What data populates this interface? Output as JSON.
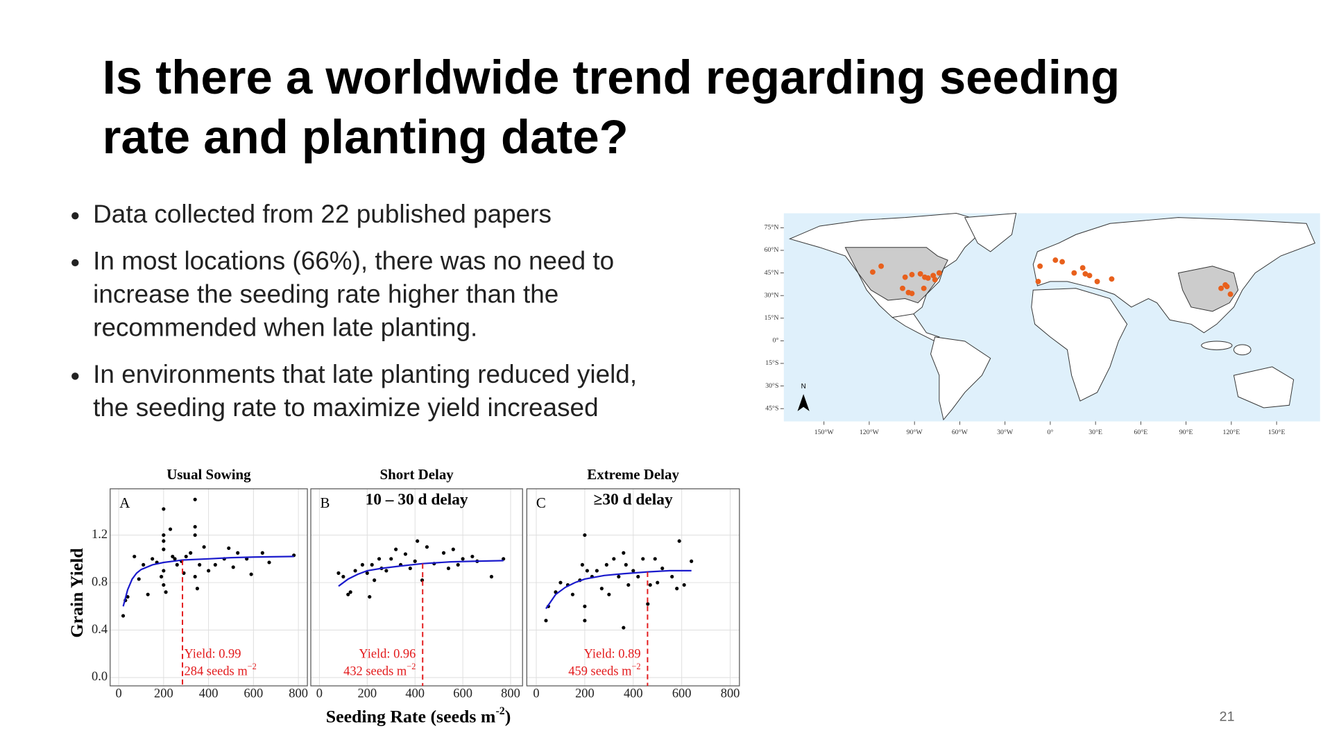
{
  "slide": {
    "title": [
      "Is there a worldwide trend regarding seeding",
      "rate and planting date?"
    ],
    "bullets": [
      [
        "Data collected from 22 published papers"
      ],
      [
        "In most locations (66%), there was no need to",
        "increase the seeding rate higher than the",
        "recommended when late planting."
      ],
      [
        "In environments that late planting reduced yield,",
        "the seeding rate to maximize yield increased"
      ]
    ],
    "page_number": "21"
  },
  "chart_data": [
    {
      "type": "map",
      "north_label": "N",
      "background": "#dff0fb",
      "land_color": "#ffffff",
      "highlight_color": "#cccccc",
      "xlim": [
        -176.6,
        178.8
      ],
      "ylim": [
        -53.5,
        84.6
      ],
      "xticks": [
        {
          "value": -150,
          "label": "150°W"
        },
        {
          "value": -120,
          "label": "120°W"
        },
        {
          "value": -90,
          "label": "90°W"
        },
        {
          "value": -60,
          "label": "60°W"
        },
        {
          "value": -30,
          "label": "30°W"
        },
        {
          "value": 0,
          "label": "0°"
        },
        {
          "value": 30,
          "label": "30°E"
        },
        {
          "value": 60,
          "label": "60°E"
        },
        {
          "value": 90,
          "label": "90°E"
        },
        {
          "value": 120,
          "label": "120°E"
        },
        {
          "value": 150,
          "label": "150°E"
        }
      ],
      "yticks": [
        {
          "value": 75,
          "label": "75°N"
        },
        {
          "value": 60,
          "label": "60°N"
        },
        {
          "value": 45,
          "label": "45°N"
        },
        {
          "value": 30,
          "label": "30°N"
        },
        {
          "value": 15,
          "label": "15°N"
        },
        {
          "value": 0,
          "label": "0°"
        },
        {
          "value": -15,
          "label": "15°S"
        },
        {
          "value": -30,
          "label": "30°S"
        },
        {
          "value": -45,
          "label": "45°S"
        }
      ],
      "series": [
        {
          "color": "#e8601c",
          "x": [
            -117.7,
            -112.1,
            -96.2,
            -91.7,
            -86.1,
            -83.2,
            -81.0,
            -77.6,
            -73.6,
            -83.8,
            -97.9,
            -94.0,
            -91.7,
            -76.4,
            -6.8,
            -8.0,
            3.4,
            7.9,
            15.8,
            21.5,
            23.2,
            26.0,
            31.1,
            40.7,
            113.2,
            116.0,
            119.4,
            117.1
          ],
          "values": [
            45.6,
            49.5,
            42.2,
            43.9,
            44.4,
            42.2,
            41.6,
            43.3,
            45.0,
            34.8,
            34.8,
            32.0,
            31.4,
            40.5,
            49.5,
            39.3,
            53.5,
            52.4,
            45.0,
            48.4,
            44.4,
            43.3,
            39.3,
            41.0,
            34.8,
            37.1,
            30.9,
            36.0
          ]
        }
      ]
    },
    {
      "type": "scatter",
      "title": "Usual Sowing",
      "panel_label": "A",
      "ylabel": "Grain Yield",
      "show_ytick_labels": true,
      "xlim": [
        -38,
        840
      ],
      "ylim": [
        -0.07,
        1.59
      ],
      "xticks": [
        0,
        200,
        400,
        600,
        800
      ],
      "yticks": [
        {
          "value": 0,
          "label": "0.0"
        },
        0.4,
        0.8,
        1.2
      ],
      "grid": true,
      "series": [
        {
          "color": "#000000",
          "x": [
            20,
            30,
            40,
            70,
            90,
            110,
            130,
            150,
            170,
            190,
            200,
            200,
            200,
            200,
            200,
            200,
            210,
            230,
            240,
            250,
            260,
            280,
            290,
            300,
            320,
            340,
            340,
            340,
            340,
            350,
            360,
            380,
            400,
            430,
            470,
            490,
            510,
            530,
            570,
            590,
            640,
            670,
            780
          ],
          "values": [
            0.52,
            0.65,
            0.68,
            1.02,
            0.83,
            0.95,
            0.7,
            1.0,
            0.97,
            0.85,
            1.42,
            1.2,
            1.15,
            1.08,
            0.9,
            0.78,
            0.72,
            1.25,
            1.02,
            1.0,
            0.95,
            0.98,
            0.88,
            1.02,
            1.05,
            1.5,
            1.27,
            1.2,
            0.85,
            0.75,
            0.95,
            1.1,
            0.9,
            0.95,
            1.0,
            1.09,
            0.93,
            1.05,
            1.0,
            0.87,
            1.05,
            0.97,
            1.03
          ]
        },
        {
          "color": "#1a1acc",
          "x": [
            20,
            40,
            60,
            80,
            100,
            150,
            200,
            284,
            400,
            500,
            600,
            780
          ],
          "values": [
            0.6,
            0.74,
            0.83,
            0.88,
            0.91,
            0.95,
            0.97,
            0.99,
            1.0,
            1.01,
            1.015,
            1.02
          ]
        }
      ],
      "annotation": {
        "x": 284,
        "y": 0.99,
        "color": "#e31a1c",
        "lines": [
          "Yield: 0.99",
          "284 seeds m"
        ],
        "sup": "−2"
      }
    },
    {
      "type": "scatter",
      "title": "Short Delay",
      "subtitle": "10 – 30 d delay",
      "panel_label": "B",
      "xlabel": "Seeding Rate (seeds m",
      "xlabel_sup": "-2",
      "xlabel_end": ")",
      "show_ytick_labels": false,
      "xlim": [
        -36,
        850
      ],
      "ylim": [
        -0.07,
        1.59
      ],
      "xticks": [
        0,
        200,
        400,
        600,
        800
      ],
      "yticks": [
        0,
        0.4,
        0.8,
        1.2
      ],
      "grid": true,
      "series": [
        {
          "color": "#000000",
          "x": [
            80,
            100,
            120,
            130,
            150,
            180,
            200,
            210,
            220,
            230,
            250,
            260,
            280,
            300,
            320,
            340,
            360,
            380,
            400,
            410,
            430,
            450,
            480,
            520,
            540,
            560,
            580,
            600,
            640,
            660,
            720,
            770
          ],
          "values": [
            0.88,
            0.85,
            0.7,
            0.72,
            0.9,
            0.95,
            0.88,
            0.68,
            0.95,
            0.82,
            1.0,
            0.92,
            0.9,
            1.0,
            1.08,
            0.95,
            1.04,
            0.92,
            0.98,
            1.15,
            0.82,
            1.1,
            0.96,
            1.05,
            0.92,
            1.08,
            0.95,
            1.0,
            1.02,
            0.98,
            0.85,
            1.0
          ]
        },
        {
          "color": "#1a1acc",
          "x": [
            80,
            120,
            160,
            200,
            260,
            340,
            432,
            550,
            650,
            770
          ],
          "values": [
            0.77,
            0.83,
            0.87,
            0.9,
            0.92,
            0.94,
            0.96,
            0.975,
            0.98,
            0.985
          ]
        }
      ],
      "annotation": {
        "x": 432,
        "y": 0.96,
        "color": "#e31a1c",
        "lines": [
          "Yield: 0.96",
          "432 seeds m"
        ],
        "sup": "−2"
      }
    },
    {
      "type": "scatter",
      "title": "Extreme Delay",
      "subtitle": "≥30 d delay",
      "panel_label": "C",
      "show_ytick_labels": false,
      "xlim": [
        -39,
        838
      ],
      "ylim": [
        -0.07,
        1.59
      ],
      "xticks": [
        0,
        200,
        400,
        600,
        800
      ],
      "yticks": [
        0,
        0.4,
        0.8,
        1.2
      ],
      "grid": true,
      "series": [
        {
          "color": "#000000",
          "x": [
            40,
            50,
            80,
            100,
            130,
            150,
            180,
            190,
            200,
            200,
            200,
            210,
            230,
            250,
            270,
            290,
            300,
            320,
            340,
            360,
            360,
            370,
            380,
            400,
            420,
            440,
            460,
            470,
            490,
            500,
            520,
            560,
            580,
            590,
            610,
            640
          ],
          "values": [
            0.48,
            0.6,
            0.72,
            0.8,
            0.78,
            0.7,
            0.82,
            0.95,
            1.2,
            0.6,
            0.48,
            0.9,
            0.85,
            0.9,
            0.75,
            0.95,
            0.7,
            1.0,
            0.85,
            0.42,
            1.05,
            0.95,
            0.78,
            0.9,
            0.85,
            1.0,
            0.62,
            0.78,
            1.0,
            0.8,
            0.92,
            0.85,
            0.75,
            1.15,
            0.78,
            0.98
          ]
        },
        {
          "color": "#1a1acc",
          "x": [
            40,
            80,
            120,
            160,
            200,
            280,
            360,
            459,
            550,
            640
          ],
          "values": [
            0.58,
            0.7,
            0.76,
            0.8,
            0.83,
            0.86,
            0.875,
            0.89,
            0.9,
            0.9
          ]
        }
      ],
      "annotation": {
        "x": 459,
        "y": 0.89,
        "color": "#e31a1c",
        "lines": [
          "Yield: 0.89",
          "459 seeds m"
        ],
        "sup": "−2"
      }
    }
  ]
}
